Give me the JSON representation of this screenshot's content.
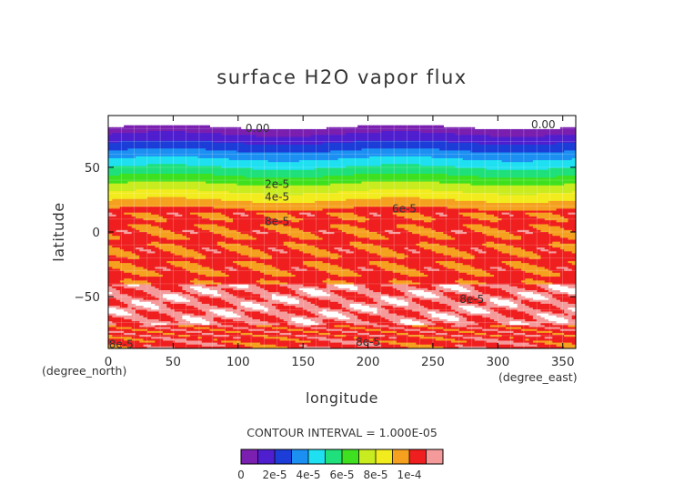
{
  "chart_data": {
    "type": "heatmap",
    "title": "surface H2O vapor flux",
    "xlabel": "longitude",
    "ylabel": "latitude",
    "x_unit_label": "(degree_east)",
    "y_unit_label": "(degree_north)",
    "xlim": [
      0,
      360
    ],
    "ylim": [
      -90,
      90
    ],
    "x_ticks": [
      "0",
      "50",
      "100",
      "150",
      "200",
      "250",
      "300",
      "350"
    ],
    "x_tick_values": [
      0,
      50,
      100,
      150,
      200,
      250,
      300,
      350
    ],
    "y_ticks": [
      "50",
      "0",
      "−50"
    ],
    "y_tick_values": [
      50,
      0,
      -50
    ],
    "grid": true,
    "contour_interval_text": "CONTOUR INTERVAL = 1.000E-05",
    "colorbar_labels": [
      "0",
      "2e-5",
      "4e-5",
      "6e-5",
      "8e-5",
      "1e-4"
    ],
    "colorbar_colors": [
      "#7a1fb0",
      "#4f1fcf",
      "#1c3dd8",
      "#1c8ff2",
      "#1fe0f0",
      "#1fe07a",
      "#3ee01f",
      "#c8ec1f",
      "#f2ec1f",
      "#f5a01f",
      "#f01f1f",
      "#f59a9a"
    ],
    "contour_labels": [
      {
        "text": "0.00",
        "lon": 115,
        "lat": 80
      },
      {
        "text": "0.00",
        "lon": 335,
        "lat": 83
      },
      {
        "text": "2e-5",
        "lon": 130,
        "lat": 37
      },
      {
        "text": "4e-5",
        "lon": 130,
        "lat": 27
      },
      {
        "text": "6e-5",
        "lon": 228,
        "lat": 18
      },
      {
        "text": "8e-5",
        "lon": 130,
        "lat": 8
      },
      {
        "text": "8e-5",
        "lon": 10,
        "lat": -87
      },
      {
        "text": "8e-5",
        "lon": 200,
        "lat": -85
      },
      {
        "text": "8e-5",
        "lon": 280,
        "lat": -52
      }
    ]
  }
}
